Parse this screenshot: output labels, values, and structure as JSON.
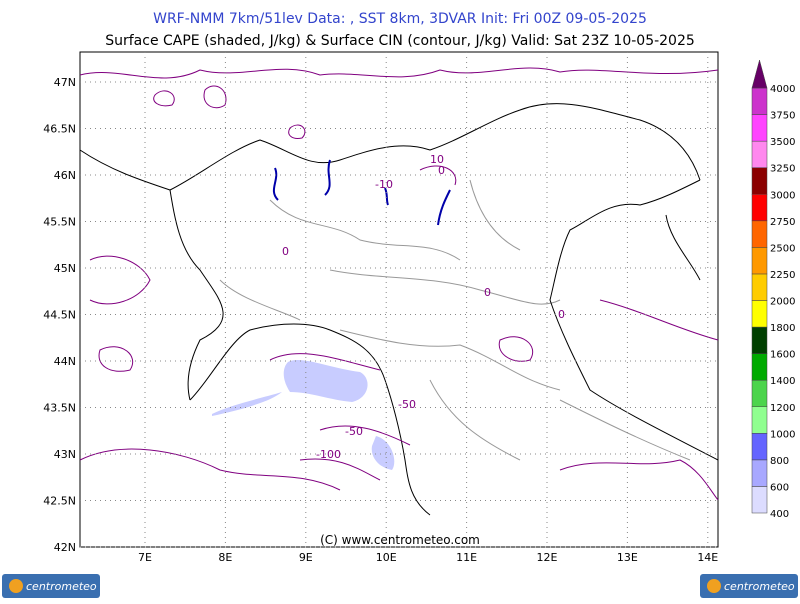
{
  "header": {
    "line1": "WRF-NMM 7km/51lev  Data: , SST 8km, 3DVAR  Init: Fri 00Z 09-05-2025",
    "line2": "Surface CAPE (shaded, J/kg) & Surface CIN (contour, J/kg)  Valid: Sat 23Z 10-05-2025"
  },
  "map": {
    "lat_labels": [
      "47N",
      "46.5N",
      "46N",
      "45.5N",
      "45N",
      "44.5N",
      "44N",
      "43.5N",
      "43N",
      "42.5N",
      "42N"
    ],
    "lon_labels": [
      "7E",
      "8E",
      "9E",
      "10E",
      "11E",
      "12E",
      "13E",
      "14E"
    ],
    "contour_labels": [
      "0",
      "-10",
      "10",
      "0",
      "0",
      "-50",
      "-50",
      "-100",
      "0"
    ],
    "credit": "(C) www.centrometeo.com"
  },
  "colorbar": {
    "levels": [
      400,
      600,
      800,
      1000,
      1200,
      1400,
      1600,
      1800,
      2000,
      2250,
      2500,
      2750,
      3000,
      3250,
      3500,
      3750,
      4000
    ],
    "colors": [
      "#dcdcff",
      "#a8a8ff",
      "#6464ff",
      "#90ff90",
      "#4cd44c",
      "#00aa00",
      "#004000",
      "#ffff00",
      "#ffcc00",
      "#ff9900",
      "#ff6600",
      "#ff0000",
      "#8b0000",
      "#ff88ee",
      "#ff44ff",
      "#cc33cc"
    ],
    "over_color": "#660066"
  },
  "footer": {
    "logo_left": "centrometeo",
    "logo_right": "centrometeo"
  }
}
